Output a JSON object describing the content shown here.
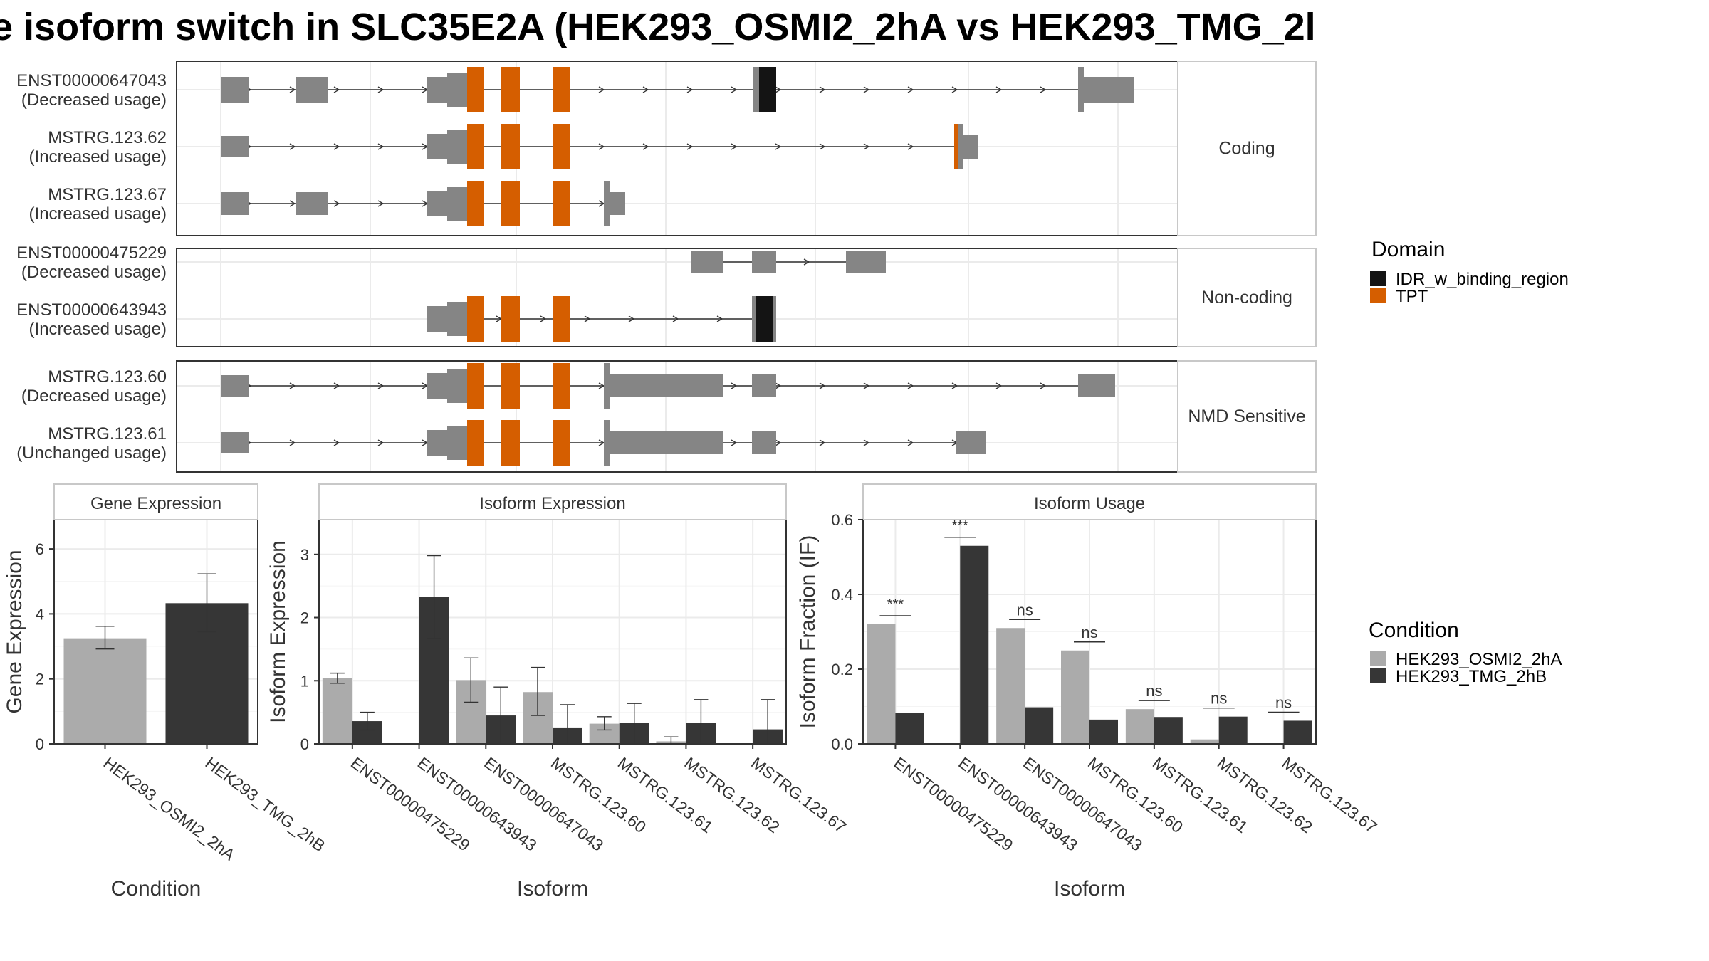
{
  "title": "e isoform switch in SLC35E2A (HEK293_OSMI2_2hA vs HEK293_TMG_2l",
  "colors": {
    "exon": "#858585",
    "tpt": "#D55E00",
    "idr": "#141414",
    "cond_a": "#ABABAB",
    "cond_b": "#363636",
    "panel_border": "#333333",
    "strip_border": "#c8c8c8",
    "grid": "#ebebeb"
  },
  "structure": {
    "facets": [
      {
        "label": "Coding",
        "transcripts": [
          {
            "id": "ENST00000647043",
            "usage": "(Decreased usage)"
          },
          {
            "id": "MSTRG.123.62",
            "usage": "(Increased usage)"
          },
          {
            "id": "MSTRG.123.67",
            "usage": "(Increased usage)"
          }
        ]
      },
      {
        "label": "Non-coding",
        "transcripts": [
          {
            "id": "ENST00000475229",
            "usage": "(Decreased usage)"
          },
          {
            "id": "ENST00000643943",
            "usage": "(Increased usage)"
          }
        ]
      },
      {
        "label": "NMD Sensitive",
        "transcripts": [
          {
            "id": "MSTRG.123.60",
            "usage": "(Decreased usage)"
          },
          {
            "id": "MSTRG.123.61",
            "usage": "(Unchanged usage)"
          }
        ]
      }
    ],
    "domain_legend": {
      "title": "Domain",
      "items": [
        {
          "label": "IDR_w_binding_region",
          "color": "#141414"
        },
        {
          "label": "TPT",
          "color": "#D55E00"
        }
      ]
    }
  },
  "condition_legend": {
    "title": "Condition",
    "items": [
      {
        "label": "HEK293_OSMI2_2hA",
        "color": "#ABABAB"
      },
      {
        "label": "HEK293_TMG_2hB",
        "color": "#363636"
      }
    ]
  },
  "chart_data": [
    {
      "type": "bar",
      "strip": "Gene Expression",
      "xlabel": "Condition",
      "ylabel": "Gene Expression",
      "ylim": [
        0,
        6.9
      ],
      "yticks": [
        0,
        2,
        4,
        6
      ],
      "categories": [
        "HEK293_OSMI2_2hA",
        "HEK293_TMG_2hB"
      ],
      "values": [
        3.25,
        4.33
      ],
      "err_low": [
        2.92,
        3.45
      ],
      "err_high": [
        3.62,
        5.23
      ],
      "grid": true
    },
    {
      "type": "bar",
      "strip": "Isoform Expression",
      "xlabel": "Isoform",
      "ylabel": "Isoform Expression",
      "ylim": [
        0,
        3.55
      ],
      "yticks": [
        0,
        1,
        2,
        3
      ],
      "categories": [
        "ENST00000475229",
        "ENST00000643943",
        "ENST00000647043",
        "MSTRG.123.60",
        "MSTRG.123.61",
        "MSTRG.123.62",
        "MSTRG.123.67"
      ],
      "series": [
        {
          "name": "HEK293_OSMI2_2hA",
          "values": [
            1.04,
            0.0,
            1.01,
            0.82,
            0.32,
            0.04,
            0.0
          ],
          "err_low": [
            0.96,
            0.0,
            0.66,
            0.45,
            0.22,
            0.0,
            0.0
          ],
          "err_high": [
            1.12,
            0.0,
            1.36,
            1.21,
            0.43,
            0.11,
            0.0
          ]
        },
        {
          "name": "HEK293_TMG_2hB",
          "values": [
            0.36,
            2.33,
            0.45,
            0.26,
            0.33,
            0.33,
            0.23
          ],
          "err_low": [
            0.22,
            1.67,
            0.0,
            0.0,
            0.0,
            0.0,
            0.0
          ],
          "err_high": [
            0.5,
            2.98,
            0.9,
            0.62,
            0.64,
            0.7,
            0.7
          ]
        }
      ],
      "grid": true
    },
    {
      "type": "bar",
      "strip": "Isoform Usage",
      "xlabel": "Isoform",
      "ylabel": "Isoform Fraction (IF)",
      "ylim": [
        0,
        0.6
      ],
      "yticks": [
        "0.0",
        "0.2",
        "0.4",
        "0.6"
      ],
      "categories": [
        "ENST00000475229",
        "ENST00000643943",
        "ENST00000647043",
        "MSTRG.123.60",
        "MSTRG.123.61",
        "MSTRG.123.62",
        "MSTRG.123.67"
      ],
      "series": [
        {
          "name": "HEK293_OSMI2_2hA",
          "values": [
            0.32,
            0.0,
            0.31,
            0.25,
            0.093,
            0.012,
            0.0
          ]
        },
        {
          "name": "HEK293_TMG_2hB",
          "values": [
            0.083,
            0.53,
            0.098,
            0.065,
            0.072,
            0.073,
            0.062
          ]
        }
      ],
      "significance": [
        "***",
        "***",
        "ns",
        "ns",
        "ns",
        "ns",
        "ns"
      ],
      "grid": true
    }
  ]
}
